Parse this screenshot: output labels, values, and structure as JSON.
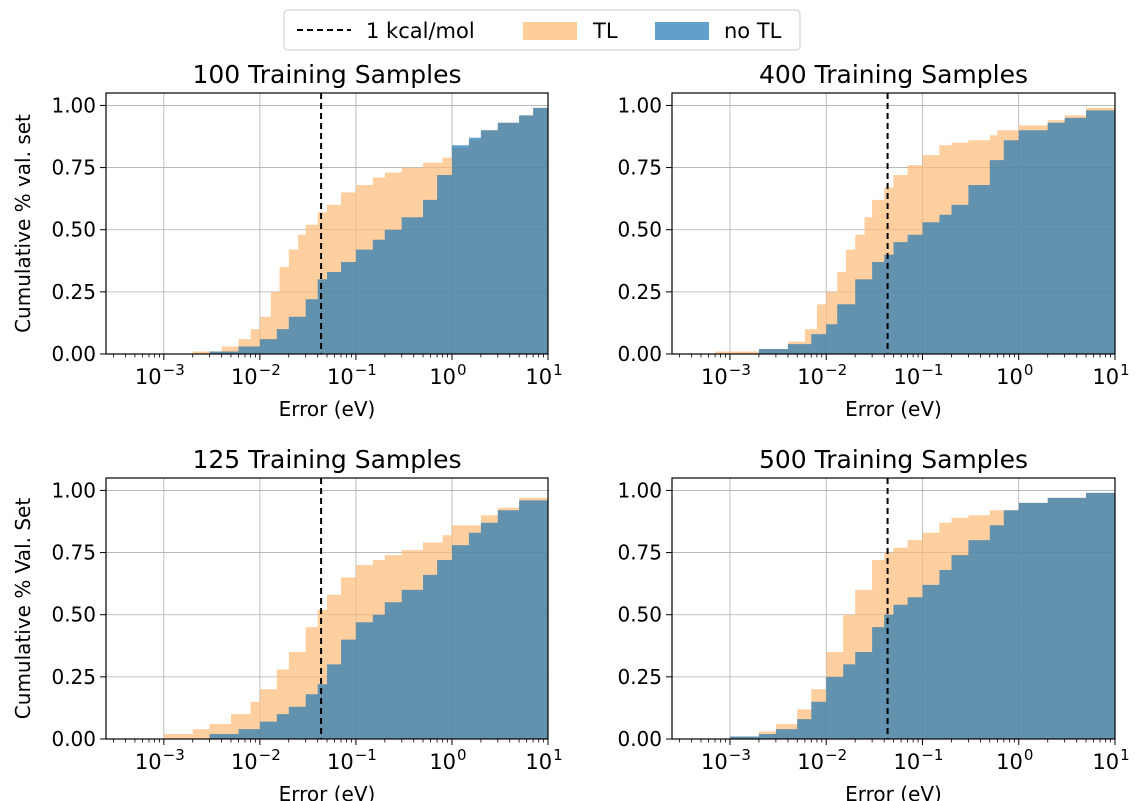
{
  "legend": {
    "placement": "top-center",
    "entries": [
      {
        "key": "dashed",
        "label": "1 kcal/mol",
        "color": "#000000"
      },
      {
        "key": "tl",
        "label": "TL",
        "color": "#ffbb78"
      },
      {
        "key": "notl",
        "label": "no TL",
        "color": "#1f77b4"
      }
    ]
  },
  "chart_data": [
    {
      "type": "area",
      "title": "100 Training Samples",
      "xlabel": "Error (eV)",
      "ylabel": "Cumulative % val. set",
      "xscale": "log",
      "xlim": [
        0.00025,
        10
      ],
      "ylim": [
        0,
        1.05
      ],
      "xticks": [
        {
          "v": 0.001,
          "b": "10",
          "e": "−3"
        },
        {
          "v": 0.01,
          "b": "10",
          "e": "−2"
        },
        {
          "v": 0.1,
          "b": "10",
          "e": "−1"
        },
        {
          "v": 1,
          "b": "10",
          "e": "0"
        },
        {
          "v": 10,
          "b": "10",
          "e": "1"
        }
      ],
      "yticks": [
        {
          "v": 0,
          "label": "0.00"
        },
        {
          "v": 0.25,
          "label": "0.25"
        },
        {
          "v": 0.5,
          "label": "0.50"
        },
        {
          "v": 0.75,
          "label": "0.75"
        },
        {
          "v": 1,
          "label": "1.00"
        }
      ],
      "grid": true,
      "vline": 0.0434,
      "series": [
        {
          "name": "TL",
          "points": [
            [
              0.00025,
              0
            ],
            [
              0.001,
              0
            ],
            [
              0.002,
              0.01
            ],
            [
              0.004,
              0.03
            ],
            [
              0.006,
              0.06
            ],
            [
              0.008,
              0.1
            ],
            [
              0.01,
              0.15
            ],
            [
              0.013,
              0.25
            ],
            [
              0.016,
              0.35
            ],
            [
              0.02,
              0.42
            ],
            [
              0.025,
              0.48
            ],
            [
              0.03,
              0.52
            ],
            [
              0.04,
              0.57
            ],
            [
              0.05,
              0.6
            ],
            [
              0.07,
              0.65
            ],
            [
              0.1,
              0.68
            ],
            [
              0.15,
              0.71
            ],
            [
              0.2,
              0.73
            ],
            [
              0.3,
              0.75
            ],
            [
              0.5,
              0.77
            ],
            [
              0.8,
              0.79
            ],
            [
              1.0,
              0.83
            ],
            [
              1.5,
              0.86
            ],
            [
              2,
              0.9
            ],
            [
              3,
              0.93
            ],
            [
              5,
              0.96
            ],
            [
              7,
              0.99
            ],
            [
              10,
              1.0
            ]
          ]
        },
        {
          "name": "no TL",
          "points": [
            [
              0.00025,
              0
            ],
            [
              0.0015,
              0
            ],
            [
              0.003,
              0.01
            ],
            [
              0.006,
              0.03
            ],
            [
              0.01,
              0.06
            ],
            [
              0.015,
              0.1
            ],
            [
              0.02,
              0.15
            ],
            [
              0.03,
              0.22
            ],
            [
              0.04,
              0.3
            ],
            [
              0.05,
              0.33
            ],
            [
              0.07,
              0.37
            ],
            [
              0.1,
              0.42
            ],
            [
              0.15,
              0.46
            ],
            [
              0.2,
              0.5
            ],
            [
              0.3,
              0.55
            ],
            [
              0.5,
              0.62
            ],
            [
              0.7,
              0.72
            ],
            [
              1.0,
              0.84
            ],
            [
              1.5,
              0.87
            ],
            [
              2,
              0.9
            ],
            [
              3,
              0.93
            ],
            [
              5,
              0.96
            ],
            [
              7,
              0.99
            ],
            [
              10,
              1.0
            ]
          ]
        }
      ]
    },
    {
      "type": "area",
      "title": "400 Training Samples",
      "xlabel": "Error (eV)",
      "ylabel": "",
      "xscale": "log",
      "xlim": [
        0.00025,
        10
      ],
      "ylim": [
        0,
        1.05
      ],
      "xticks": [
        {
          "v": 0.001,
          "b": "10",
          "e": "−3"
        },
        {
          "v": 0.01,
          "b": "10",
          "e": "−2"
        },
        {
          "v": 0.1,
          "b": "10",
          "e": "−1"
        },
        {
          "v": 1,
          "b": "10",
          "e": "0"
        },
        {
          "v": 10,
          "b": "10",
          "e": "1"
        }
      ],
      "yticks": [
        {
          "v": 0,
          "label": "0.00"
        },
        {
          "v": 0.25,
          "label": "0.25"
        },
        {
          "v": 0.5,
          "label": "0.50"
        },
        {
          "v": 0.75,
          "label": "0.75"
        },
        {
          "v": 1,
          "label": "1.00"
        }
      ],
      "grid": true,
      "vline": 0.0434,
      "series": [
        {
          "name": "TL",
          "points": [
            [
              0.00025,
              0
            ],
            [
              0.0004,
              0
            ],
            [
              0.0007,
              0.01
            ],
            [
              0.002,
              0.02
            ],
            [
              0.004,
              0.05
            ],
            [
              0.006,
              0.1
            ],
            [
              0.008,
              0.2
            ],
            [
              0.01,
              0.25
            ],
            [
              0.013,
              0.33
            ],
            [
              0.016,
              0.42
            ],
            [
              0.02,
              0.48
            ],
            [
              0.025,
              0.55
            ],
            [
              0.03,
              0.62
            ],
            [
              0.04,
              0.67
            ],
            [
              0.05,
              0.72
            ],
            [
              0.07,
              0.76
            ],
            [
              0.1,
              0.8
            ],
            [
              0.15,
              0.84
            ],
            [
              0.2,
              0.85
            ],
            [
              0.3,
              0.86
            ],
            [
              0.5,
              0.88
            ],
            [
              0.6,
              0.9
            ],
            [
              1,
              0.92
            ],
            [
              2,
              0.94
            ],
            [
              3,
              0.96
            ],
            [
              5,
              0.99
            ],
            [
              10,
              1.0
            ]
          ]
        },
        {
          "name": "no TL",
          "points": [
            [
              0.00025,
              0
            ],
            [
              0.0008,
              0
            ],
            [
              0.002,
              0.02
            ],
            [
              0.004,
              0.04
            ],
            [
              0.007,
              0.08
            ],
            [
              0.01,
              0.12
            ],
            [
              0.013,
              0.2
            ],
            [
              0.02,
              0.3
            ],
            [
              0.03,
              0.37
            ],
            [
              0.04,
              0.4
            ],
            [
              0.05,
              0.45
            ],
            [
              0.07,
              0.48
            ],
            [
              0.1,
              0.53
            ],
            [
              0.15,
              0.56
            ],
            [
              0.2,
              0.6
            ],
            [
              0.3,
              0.68
            ],
            [
              0.5,
              0.78
            ],
            [
              0.7,
              0.86
            ],
            [
              1.0,
              0.9
            ],
            [
              2,
              0.93
            ],
            [
              3,
              0.95
            ],
            [
              5,
              0.98
            ],
            [
              10,
              1.0
            ]
          ]
        }
      ]
    },
    {
      "type": "area",
      "title": "125 Training Samples",
      "xlabel": "Error (eV)",
      "ylabel": "Cumulative % Val. Set",
      "xscale": "log",
      "xlim": [
        0.00025,
        10
      ],
      "ylim": [
        0,
        1.05
      ],
      "xticks": [
        {
          "v": 0.001,
          "b": "10",
          "e": "−3"
        },
        {
          "v": 0.01,
          "b": "10",
          "e": "−2"
        },
        {
          "v": 0.1,
          "b": "10",
          "e": "−1"
        },
        {
          "v": 1,
          "b": "10",
          "e": "0"
        },
        {
          "v": 10,
          "b": "10",
          "e": "1"
        }
      ],
      "yticks": [
        {
          "v": 0,
          "label": "0.00"
        },
        {
          "v": 0.25,
          "label": "0.25"
        },
        {
          "v": 0.5,
          "label": "0.50"
        },
        {
          "v": 0.75,
          "label": "0.75"
        },
        {
          "v": 1,
          "label": "1.00"
        }
      ],
      "grid": true,
      "vline": 0.0434,
      "series": [
        {
          "name": "TL",
          "points": [
            [
              0.00025,
              0
            ],
            [
              0.0005,
              0
            ],
            [
              0.001,
              0.02
            ],
            [
              0.002,
              0.04
            ],
            [
              0.003,
              0.06
            ],
            [
              0.005,
              0.1
            ],
            [
              0.008,
              0.15
            ],
            [
              0.01,
              0.2
            ],
            [
              0.015,
              0.28
            ],
            [
              0.02,
              0.35
            ],
            [
              0.03,
              0.45
            ],
            [
              0.04,
              0.52
            ],
            [
              0.05,
              0.58
            ],
            [
              0.07,
              0.65
            ],
            [
              0.1,
              0.7
            ],
            [
              0.15,
              0.72
            ],
            [
              0.2,
              0.74
            ],
            [
              0.3,
              0.76
            ],
            [
              0.5,
              0.79
            ],
            [
              0.8,
              0.82
            ],
            [
              1,
              0.86
            ],
            [
              2,
              0.9
            ],
            [
              3,
              0.93
            ],
            [
              5,
              0.97
            ],
            [
              10,
              1.0
            ]
          ]
        },
        {
          "name": "no TL",
          "points": [
            [
              0.00025,
              0
            ],
            [
              0.001,
              0
            ],
            [
              0.003,
              0.02
            ],
            [
              0.006,
              0.04
            ],
            [
              0.01,
              0.07
            ],
            [
              0.015,
              0.1
            ],
            [
              0.02,
              0.13
            ],
            [
              0.03,
              0.18
            ],
            [
              0.04,
              0.22
            ],
            [
              0.05,
              0.3
            ],
            [
              0.07,
              0.4
            ],
            [
              0.1,
              0.47
            ],
            [
              0.15,
              0.5
            ],
            [
              0.2,
              0.55
            ],
            [
              0.3,
              0.6
            ],
            [
              0.5,
              0.66
            ],
            [
              0.7,
              0.72
            ],
            [
              1,
              0.78
            ],
            [
              1.5,
              0.83
            ],
            [
              2,
              0.87
            ],
            [
              3,
              0.92
            ],
            [
              5,
              0.96
            ],
            [
              10,
              1.0
            ]
          ]
        }
      ]
    },
    {
      "type": "area",
      "title": "500 Training Samples",
      "xlabel": "Error (eV)",
      "ylabel": "",
      "xscale": "log",
      "xlim": [
        0.00025,
        10
      ],
      "ylim": [
        0,
        1.05
      ],
      "xticks": [
        {
          "v": 0.001,
          "b": "10",
          "e": "−3"
        },
        {
          "v": 0.01,
          "b": "10",
          "e": "−2"
        },
        {
          "v": 0.1,
          "b": "10",
          "e": "−1"
        },
        {
          "v": 1,
          "b": "10",
          "e": "0"
        },
        {
          "v": 10,
          "b": "10",
          "e": "1"
        }
      ],
      "yticks": [
        {
          "v": 0,
          "label": "0.00"
        },
        {
          "v": 0.25,
          "label": "0.25"
        },
        {
          "v": 0.5,
          "label": "0.50"
        },
        {
          "v": 0.75,
          "label": "0.75"
        },
        {
          "v": 1,
          "label": "1.00"
        }
      ],
      "grid": true,
      "vline": 0.0434,
      "series": [
        {
          "name": "TL",
          "points": [
            [
              0.00025,
              0
            ],
            [
              0.0005,
              0
            ],
            [
              0.001,
              0.01
            ],
            [
              0.002,
              0.03
            ],
            [
              0.003,
              0.06
            ],
            [
              0.005,
              0.12
            ],
            [
              0.007,
              0.2
            ],
            [
              0.01,
              0.35
            ],
            [
              0.015,
              0.5
            ],
            [
              0.02,
              0.6
            ],
            [
              0.03,
              0.72
            ],
            [
              0.04,
              0.75
            ],
            [
              0.05,
              0.77
            ],
            [
              0.07,
              0.8
            ],
            [
              0.1,
              0.83
            ],
            [
              0.15,
              0.87
            ],
            [
              0.2,
              0.89
            ],
            [
              0.3,
              0.9
            ],
            [
              0.5,
              0.92
            ],
            [
              1,
              0.95
            ],
            [
              2,
              0.97
            ],
            [
              5,
              0.99
            ],
            [
              10,
              1.0
            ]
          ]
        },
        {
          "name": "no TL",
          "points": [
            [
              0.00025,
              0
            ],
            [
              0.0005,
              0
            ],
            [
              0.001,
              0.01
            ],
            [
              0.002,
              0.02
            ],
            [
              0.003,
              0.04
            ],
            [
              0.005,
              0.08
            ],
            [
              0.007,
              0.15
            ],
            [
              0.01,
              0.25
            ],
            [
              0.015,
              0.3
            ],
            [
              0.02,
              0.35
            ],
            [
              0.03,
              0.45
            ],
            [
              0.04,
              0.5
            ],
            [
              0.05,
              0.54
            ],
            [
              0.07,
              0.57
            ],
            [
              0.1,
              0.62
            ],
            [
              0.15,
              0.68
            ],
            [
              0.2,
              0.74
            ],
            [
              0.3,
              0.8
            ],
            [
              0.5,
              0.86
            ],
            [
              0.7,
              0.92
            ],
            [
              1,
              0.95
            ],
            [
              2,
              0.97
            ],
            [
              5,
              0.99
            ],
            [
              10,
              1.0
            ]
          ]
        }
      ]
    }
  ]
}
